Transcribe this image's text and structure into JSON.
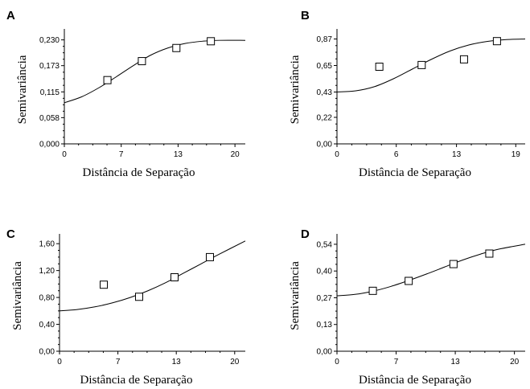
{
  "chart_data": [
    {
      "type": "scatter",
      "panel": "A",
      "xlabel": "Distância de Separação",
      "ylabel": "Semivariância",
      "xlim": [
        0,
        21
      ],
      "ylim": [
        0,
        0.24
      ],
      "x_ticks": [
        "0",
        "7",
        "13",
        "20"
      ],
      "x_tick_values": [
        0,
        6.6,
        13.2,
        19.8
      ],
      "y_ticks": [
        "0,000",
        "0,058",
        "0,115",
        "0,173",
        "0,230"
      ],
      "y_tick_values": [
        0,
        0.058,
        0.115,
        0.173,
        0.23
      ],
      "points": [
        [
          5,
          0.141
        ],
        [
          9,
          0.183
        ],
        [
          13,
          0.212
        ],
        [
          17,
          0.227
        ]
      ],
      "model": [
        [
          0,
          0.091
        ],
        [
          2,
          0.104
        ],
        [
          4,
          0.124
        ],
        [
          6,
          0.148
        ],
        [
          8,
          0.173
        ],
        [
          10,
          0.196
        ],
        [
          12,
          0.212
        ],
        [
          14,
          0.222
        ],
        [
          16,
          0.227
        ],
        [
          18,
          0.229
        ],
        [
          21,
          0.229
        ]
      ]
    },
    {
      "type": "scatter",
      "panel": "B",
      "xlabel": "Distância de Separação",
      "ylabel": "Semivariância",
      "xlim": [
        0,
        20
      ],
      "ylim": [
        0,
        0.9
      ],
      "x_ticks": [
        "0",
        "6",
        "13",
        "19"
      ],
      "x_tick_values": [
        0,
        6.3,
        12.7,
        19
      ],
      "y_ticks": [
        "0,00",
        "0,22",
        "0,43",
        "0,65",
        "0,87"
      ],
      "y_tick_values": [
        0,
        0.22,
        0.43,
        0.65,
        0.87
      ],
      "points": [
        [
          4.5,
          0.64
        ],
        [
          9,
          0.654
        ],
        [
          13.5,
          0.701
        ],
        [
          17,
          0.852
        ]
      ],
      "model": [
        [
          0,
          0.43
        ],
        [
          2,
          0.44
        ],
        [
          4,
          0.475
        ],
        [
          6,
          0.54
        ],
        [
          8,
          0.62
        ],
        [
          10,
          0.7
        ],
        [
          12,
          0.77
        ],
        [
          14,
          0.82
        ],
        [
          16,
          0.85
        ],
        [
          18,
          0.865
        ],
        [
          20,
          0.87
        ]
      ]
    },
    {
      "type": "scatter",
      "panel": "C",
      "xlabel": "Distância de Separação",
      "ylabel": "Semivariância",
      "xlim": [
        0,
        21
      ],
      "ylim": [
        0,
        1.65
      ],
      "x_ticks": [
        "0",
        "7",
        "13",
        "20"
      ],
      "x_tick_values": [
        0,
        6.6,
        13.2,
        19.8
      ],
      "y_ticks": [
        "0,00",
        "0,40",
        "0,80",
        "1,20",
        "1,60"
      ],
      "y_tick_values": [
        0,
        0.4,
        0.8,
        1.2,
        1.6
      ],
      "points": [
        [
          5,
          0.99
        ],
        [
          9,
          0.81
        ],
        [
          13,
          1.1
        ],
        [
          17,
          1.4
        ]
      ],
      "model": [
        [
          0,
          0.6
        ],
        [
          2,
          0.62
        ],
        [
          4,
          0.66
        ],
        [
          6,
          0.72
        ],
        [
          8,
          0.8
        ],
        [
          10,
          0.9
        ],
        [
          12,
          1.02
        ],
        [
          14,
          1.16
        ],
        [
          16,
          1.3
        ],
        [
          18,
          1.44
        ],
        [
          21,
          1.64
        ]
      ]
    },
    {
      "type": "scatter",
      "panel": "D",
      "xlabel": "Distância de Separação",
      "ylabel": "Semivariância",
      "xlim": [
        0,
        21
      ],
      "ylim": [
        0,
        0.56
      ],
      "x_ticks": [
        "0",
        "7",
        "13",
        "20"
      ],
      "x_tick_values": [
        0,
        6.6,
        13.2,
        19.8
      ],
      "y_ticks": [
        "0,00",
        "0,13",
        "0,27",
        "0,40",
        "0,54"
      ],
      "y_tick_values": [
        0,
        0.135,
        0.27,
        0.405,
        0.54
      ],
      "points": [
        [
          4,
          0.305
        ],
        [
          8,
          0.355
        ],
        [
          13,
          0.44
        ],
        [
          17,
          0.493
        ]
      ],
      "model": [
        [
          0,
          0.28
        ],
        [
          2,
          0.287
        ],
        [
          4,
          0.303
        ],
        [
          6,
          0.327
        ],
        [
          8,
          0.357
        ],
        [
          10,
          0.39
        ],
        [
          12,
          0.425
        ],
        [
          14,
          0.46
        ],
        [
          16,
          0.49
        ],
        [
          18,
          0.515
        ],
        [
          21,
          0.54
        ]
      ]
    }
  ]
}
